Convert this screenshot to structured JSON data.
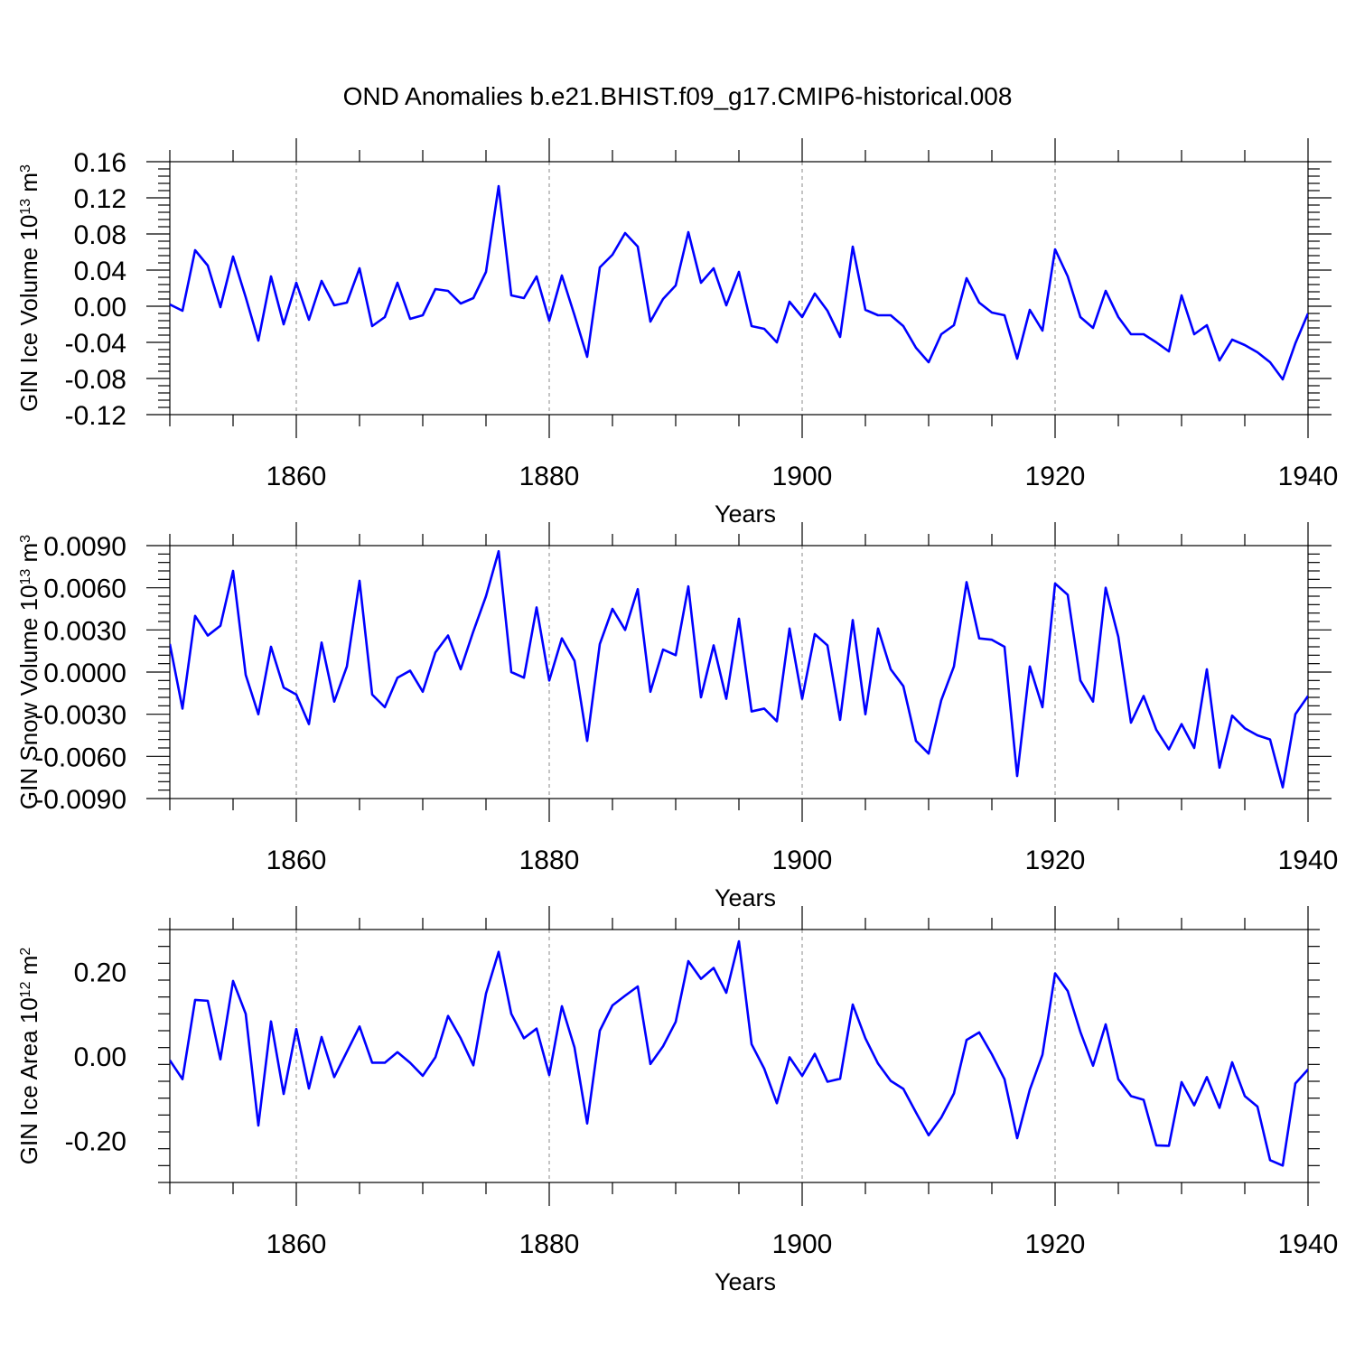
{
  "title": "OND Anomalies b.e21.BHIST.f09_g17.CMIP6-historical.008",
  "colors": {
    "line": "#0000ff",
    "axes": "#000000",
    "grid": "#888888"
  },
  "chart_data": [
    {
      "type": "line",
      "name": "ice-volume",
      "xlabel": "Years",
      "ylabel": {
        "text": "GIN Ice Volume 10",
        "exp": "13",
        "unit": " m",
        "unit_exp": "3"
      },
      "xlim": [
        1850,
        1940
      ],
      "ylim": [
        -0.12,
        0.16
      ],
      "xticks": [
        1860,
        1880,
        1900,
        1920,
        1940
      ],
      "xtick_labels": [
        "1860",
        "1880",
        "1900",
        "1920",
        "1940"
      ],
      "yticks": [
        -0.12,
        -0.08,
        -0.04,
        0.0,
        0.04,
        0.08,
        0.12,
        0.16
      ],
      "ytick_labels": [
        "-0.12",
        "-0.08",
        "-0.04",
        "0.00",
        "0.04",
        "0.08",
        "0.12",
        "0.16"
      ],
      "x_start": 1850,
      "values": [
        0.002,
        -0.005,
        0.062,
        0.045,
        -0.001,
        0.055,
        0.01,
        -0.038,
        0.033,
        -0.02,
        0.026,
        -0.015,
        0.028,
        0.001,
        0.004,
        0.042,
        -0.022,
        -0.012,
        0.026,
        -0.014,
        -0.01,
        0.019,
        0.017,
        0.003,
        0.009,
        0.038,
        0.133,
        0.012,
        0.009,
        0.033,
        -0.016,
        0.034,
        -0.01,
        -0.056,
        0.043,
        0.057,
        0.081,
        0.066,
        -0.017,
        0.008,
        0.023,
        0.082,
        0.026,
        0.042,
        0.001,
        0.038,
        -0.022,
        -0.025,
        -0.04,
        0.005,
        -0.012,
        0.014,
        -0.005,
        -0.034,
        0.066,
        -0.004,
        -0.01,
        -0.01,
        -0.022,
        -0.046,
        -0.062,
        -0.031,
        -0.021,
        0.031,
        0.004,
        -0.007,
        -0.01,
        -0.058,
        -0.004,
        -0.027,
        0.063,
        0.033,
        -0.012,
        -0.024,
        0.017,
        -0.012,
        -0.031,
        -0.031,
        -0.04,
        -0.05,
        0.012,
        -0.031,
        -0.021,
        -0.06,
        -0.037,
        -0.043,
        -0.051,
        -0.062,
        -0.081,
        -0.041,
        -0.008
      ]
    },
    {
      "type": "line",
      "name": "snow-volume",
      "xlabel": "Years",
      "ylabel": {
        "text": "GIN Snow Volume 10",
        "exp": "13",
        "unit": " m",
        "unit_exp": "3"
      },
      "xlim": [
        1850,
        1940
      ],
      "ylim": [
        -0.009,
        0.009
      ],
      "xticks": [
        1860,
        1880,
        1900,
        1920,
        1940
      ],
      "xtick_labels": [
        "1860",
        "1880",
        "1900",
        "1920",
        "1940"
      ],
      "yticks": [
        -0.009,
        -0.006,
        -0.003,
        0.0,
        0.003,
        0.006,
        0.009
      ],
      "ytick_labels": [
        "-0.0090",
        "-0.0060",
        "-0.0030",
        "0.0000",
        "0.0030",
        "0.0060",
        "0.0090"
      ],
      "x_start": 1850,
      "values": [
        0.002,
        -0.0026,
        0.004,
        0.0026,
        0.0033,
        0.0072,
        -0.0002,
        -0.003,
        0.0018,
        -0.0011,
        -0.0016,
        -0.0037,
        0.0021,
        -0.0021,
        0.0004,
        0.0065,
        -0.0016,
        -0.0025,
        -0.0004,
        0.0001,
        -0.0014,
        0.0014,
        0.0026,
        0.0002,
        0.0029,
        0.0054,
        0.0086,
        0.0,
        -0.0004,
        0.0046,
        -0.0006,
        0.0024,
        0.0008,
        -0.0049,
        0.002,
        0.0045,
        0.003,
        0.0059,
        -0.0014,
        0.0016,
        0.0012,
        0.0061,
        -0.0018,
        0.0019,
        -0.0019,
        0.0038,
        -0.0028,
        -0.0026,
        -0.0035,
        0.0031,
        -0.0019,
        0.0027,
        0.0019,
        -0.0034,
        0.0037,
        -0.003,
        0.0031,
        0.0002,
        -0.001,
        -0.0049,
        -0.0058,
        -0.002,
        0.0004,
        0.0064,
        0.0024,
        0.0023,
        0.0018,
        -0.0074,
        0.0004,
        -0.0025,
        0.0063,
        0.0055,
        -0.0006,
        -0.0021,
        0.006,
        0.0025,
        -0.0036,
        -0.0017,
        -0.0041,
        -0.0055,
        -0.0037,
        -0.0054,
        0.0002,
        -0.0068,
        -0.0031,
        -0.004,
        -0.0045,
        -0.0048,
        -0.0082,
        -0.003,
        -0.0017
      ]
    },
    {
      "type": "line",
      "name": "ice-area",
      "xlabel": "Years",
      "ylabel": {
        "text": "GIN Ice Area 10",
        "exp": "12",
        "unit": " m",
        "unit_exp": "2"
      },
      "xlim": [
        1850,
        1940
      ],
      "ylim": [
        -0.3,
        0.3
      ],
      "xticks": [
        1860,
        1880,
        1900,
        1920,
        1940
      ],
      "xtick_labels": [
        "1860",
        "1880",
        "1900",
        "1920",
        "1940"
      ],
      "yticks": [
        -0.2,
        0.0,
        0.2
      ],
      "ytick_labels": [
        "-0.20",
        "0.00",
        "0.20"
      ],
      "x_start": 1850,
      "values": [
        -0.01,
        -0.055,
        0.133,
        0.131,
        -0.008,
        0.178,
        0.1,
        -0.165,
        0.082,
        -0.09,
        0.064,
        -0.077,
        0.045,
        -0.05,
        0.01,
        0.07,
        -0.016,
        -0.016,
        0.009,
        -0.016,
        -0.047,
        -0.003,
        0.095,
        0.042,
        -0.022,
        0.148,
        0.247,
        0.1,
        0.042,
        0.065,
        -0.045,
        0.118,
        0.02,
        -0.16,
        0.06,
        0.12,
        0.143,
        0.165,
        -0.019,
        0.023,
        0.081,
        0.225,
        0.183,
        0.209,
        0.15,
        0.272,
        0.028,
        -0.03,
        -0.112,
        -0.003,
        -0.047,
        0.005,
        -0.061,
        -0.054,
        0.122,
        0.042,
        -0.018,
        -0.059,
        -0.078,
        -0.134,
        -0.188,
        -0.146,
        -0.089,
        0.038,
        0.056,
        0.004,
        -0.055,
        -0.195,
        -0.08,
        0.003,
        0.196,
        0.154,
        0.057,
        -0.023,
        0.075,
        -0.055,
        -0.095,
        -0.104,
        -0.212,
        -0.213,
        -0.062,
        -0.117,
        -0.05,
        -0.123,
        -0.015,
        -0.095,
        -0.12,
        -0.247,
        -0.26,
        -0.065,
        -0.032
      ]
    }
  ]
}
